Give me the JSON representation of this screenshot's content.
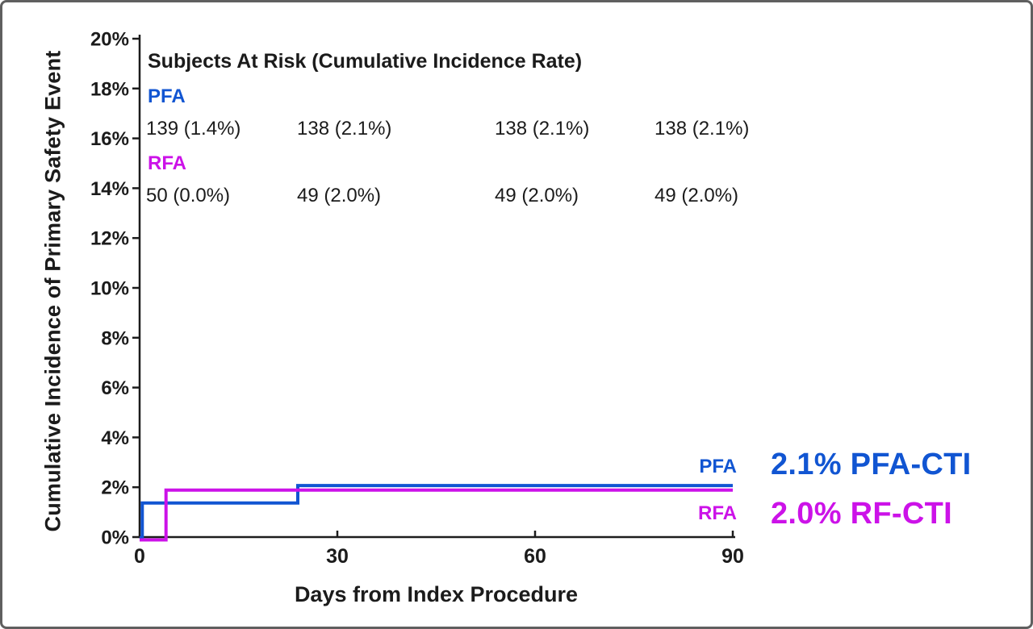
{
  "figure": {
    "background": "#ffffff",
    "border_color": "#5f5f5f"
  },
  "colors": {
    "pfa_blue": "#1155D2",
    "rfa_magenta": "#CC12E8",
    "axis_black": "#1c1c1c"
  },
  "chart_data": {
    "type": "line",
    "subtype": "step-cumulative-incidence",
    "title": "",
    "xlabel": "Days from Index Procedure",
    "ylabel": "Cumulative Incidence of Primary Safety Event",
    "xlim": [
      0,
      90
    ],
    "ylim": [
      0,
      20
    ],
    "grid": false,
    "x_ticks": [
      {
        "value": 0,
        "label": "0"
      },
      {
        "value": 30,
        "label": "30"
      },
      {
        "value": 60,
        "label": "60"
      },
      {
        "value": 90,
        "label": "90"
      }
    ],
    "y_ticks": [
      {
        "value": 0,
        "label": "0%"
      },
      {
        "value": 2,
        "label": "2%"
      },
      {
        "value": 4,
        "label": "4%"
      },
      {
        "value": 6,
        "label": "6%"
      },
      {
        "value": 8,
        "label": "8%"
      },
      {
        "value": 10,
        "label": "10%"
      },
      {
        "value": 12,
        "label": "12%"
      },
      {
        "value": 14,
        "label": "14%"
      },
      {
        "value": 16,
        "label": "16%"
      },
      {
        "value": 18,
        "label": "18%"
      },
      {
        "value": 20,
        "label": "20%"
      }
    ],
    "series": [
      {
        "name": "PFA",
        "color": "#1155D2",
        "end_label": "PFA",
        "final_rate": "2.1%",
        "points": [
          [
            0,
            0
          ],
          [
            0.4,
            0
          ],
          [
            0.4,
            1.4
          ],
          [
            24,
            1.4
          ],
          [
            24,
            2.1
          ],
          [
            90,
            2.1
          ]
        ]
      },
      {
        "name": "RFA",
        "color": "#CC12E8",
        "end_label": "RFA",
        "final_rate": "2.0%",
        "points": [
          [
            0,
            0
          ],
          [
            4,
            0
          ],
          [
            4,
            2.0
          ],
          [
            90,
            2.0
          ]
        ]
      }
    ],
    "annotations": [
      {
        "text": "2.1% PFA-CTI",
        "color": "#1155D2"
      },
      {
        "text": "2.0% RF-CTI",
        "color": "#CC12E8"
      }
    ],
    "at_risk": {
      "title": "Subjects At Risk (Cumulative Incidence Rate)",
      "timepoints": [
        0,
        30,
        60,
        90
      ],
      "groups": [
        {
          "label": "PFA",
          "color": "#1155D2",
          "values": [
            "139 (1.4%)",
            "138 (2.1%)",
            "138 (2.1%)",
            "138 (2.1%)"
          ]
        },
        {
          "label": "RFA",
          "color": "#CC12E8",
          "values": [
            "50 (0.0%)",
            "49 (2.0%)",
            "49 (2.0%)",
            "49 (2.0%)"
          ]
        }
      ]
    }
  }
}
